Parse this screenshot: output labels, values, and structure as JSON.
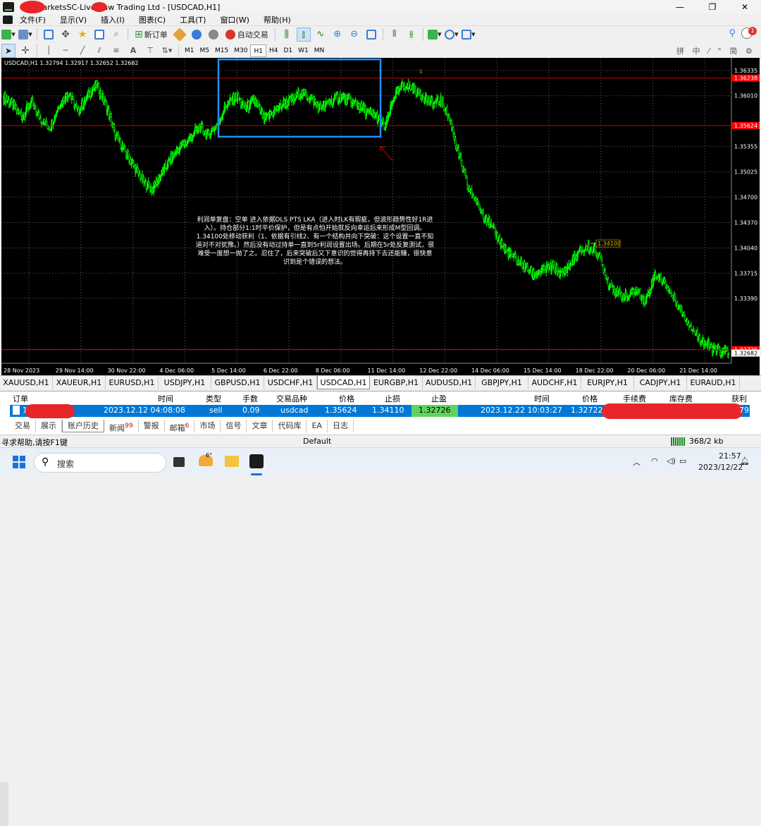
{
  "window": {
    "title": "ICMarketsSC-Live    Raw Trading Ltd - [USDCAD,H1]",
    "min": "—",
    "max": "❐",
    "close": "✕"
  },
  "menu": [
    "文件(F)",
    "显示(V)",
    "插入(I)",
    "图表(C)",
    "工具(T)",
    "窗口(W)",
    "帮助(H)"
  ],
  "toolbar": {
    "new_order": "新订单",
    "auto_trade": "自动交易",
    "notif_count": "1"
  },
  "timeframes": [
    "M1",
    "M5",
    "M15",
    "M30",
    "H1",
    "H4",
    "D1",
    "W1",
    "MN"
  ],
  "active_timeframe": "H1",
  "chart_header": "USDCAD,H1  1.32794 1.32917 1.32652 1.32682",
  "chart_data": {
    "type": "candlestick",
    "symbol": "USDCAD",
    "timeframe": "H1",
    "ohlc_current": {
      "open": 1.32794,
      "high": 1.32917,
      "low": 1.32652,
      "close": 1.32682
    },
    "y_ticks": [
      "1.36335",
      "1.36010",
      "1.35355",
      "1.35025",
      "1.34700",
      "1.34370",
      "1.34040",
      "1.33715",
      "1.33390",
      "1.32730"
    ],
    "x_ticks": [
      "28 Nov 2023",
      "29 Nov 14:00",
      "30 Nov 22:00",
      "4 Dec 06:00",
      "5 Dec 14:00",
      "6 Dec 22:00",
      "8 Dec 06:00",
      "11 Dec 14:00",
      "12 Dec 22:00",
      "14 Dec 06:00",
      "15 Dec 14:00",
      "18 Dec 22:00",
      "20 Dec 06:00",
      "21 Dec 14:00"
    ],
    "ylim": [
      1.3255,
      1.365
    ],
    "price_lines": [
      {
        "label": "1.36238",
        "value": 1.36238,
        "bg": "#ff0000"
      },
      {
        "label": "1.35624",
        "value": 1.35624,
        "bg": "#ff0000"
      },
      {
        "label": "1.32726",
        "value": 1.32726,
        "bg": "#ff0000"
      }
    ],
    "current_price": "1.32682",
    "tp_marker": "1.34100",
    "series_close": [
      1.36,
      1.3588,
      1.3575,
      1.3592,
      1.357,
      1.356,
      1.359,
      1.3605,
      1.358,
      1.36,
      1.3615,
      1.359,
      1.355,
      1.353,
      1.351,
      1.349,
      1.348,
      1.35,
      1.352,
      1.3535,
      1.3545,
      1.356,
      1.355,
      1.3565,
      1.359,
      1.36,
      1.3585,
      1.3595,
      1.357,
      1.358,
      1.359,
      1.3595,
      1.3605,
      1.3598,
      1.3585,
      1.3592,
      1.36,
      1.3595,
      1.359,
      1.358,
      1.3575,
      1.356,
      1.36,
      1.3615,
      1.361,
      1.3602,
      1.359,
      1.3595,
      1.357,
      1.352,
      1.348,
      1.346,
      1.344,
      1.342,
      1.34,
      1.339,
      1.338,
      1.337,
      1.3375,
      1.338,
      1.337,
      1.3385,
      1.34,
      1.3405,
      1.3395,
      1.336,
      1.3345,
      1.334,
      1.335,
      1.3335,
      1.337,
      1.336,
      1.334,
      1.332,
      1.33,
      1.3285,
      1.3275,
      1.327
    ],
    "box_color": "#1e90ff",
    "candle_color": "#00ff00"
  },
  "annotation": "利润单复盘：空单 进入依据DLS PTS LKA（进入时LK有瑕疵，但波形趋势性好1R进入）。持仓部分1:1时平价保护，但是有点怕开始就反向幸运后来形成M型回调。1.34100处移动获利（1、依据有引线2、有一个结构并向下突破：这个设置一直不知道对不对犹豫。）然后没有动过持单一直到5r利润设置出场。后期在5r处反复测试，很难受一度想一抛了之。忍住了，后来突破后又下意识的觉得再持下去还能赚，很快意识到是个错误的想法。",
  "symbol_tabs": [
    "XAUUSD,H1",
    "XAUEUR,H1",
    "EURUSD,H1",
    "USDJPY,H1",
    "GBPUSD,H1",
    "USDCHF,H1",
    "USDCAD,H1",
    "EURGBP,H1",
    "AUDUSD,H1",
    "GBPJPY,H1",
    "AUDCHF,H1",
    "EURJPY,H1",
    "CADJPY,H1",
    "EURAUD,H1"
  ],
  "active_symbol": "USDCAD,H1",
  "terminal": {
    "headers": [
      "订单",
      "时间",
      "类型",
      "手数",
      "交易品种",
      "价格",
      "止损",
      "止盈",
      "时间",
      "价格",
      "手续费",
      "库存费",
      "获利"
    ],
    "row": {
      "order": "12",
      "open_time": "2023.12.12 04:08:08",
      "type": "sell",
      "lots": "0.09",
      "symbol": "usdcad",
      "open_price": "1.35624",
      "sl": "1.34110",
      "tp": "1.32726",
      "close_time": "2023.12.22 10:03:27",
      "close_price": "1.32722",
      "profit_tail": "79"
    },
    "tabs": [
      "交易",
      "展示",
      "账户历史",
      "新闻",
      "警报",
      "邮箱",
      "市场",
      "信号",
      "文章",
      "代码库",
      "EA",
      "日志"
    ],
    "active_tab": "账户历史",
    "news_count": "99",
    "mail_count": "6"
  },
  "status": {
    "help": "寻求帮助,请按F1键",
    "profile": "Default",
    "traffic": "368/2 kb"
  },
  "taskbar": {
    "search": "搜索",
    "weather": "6°",
    "time": "21:57",
    "date": "2023/12/22"
  }
}
